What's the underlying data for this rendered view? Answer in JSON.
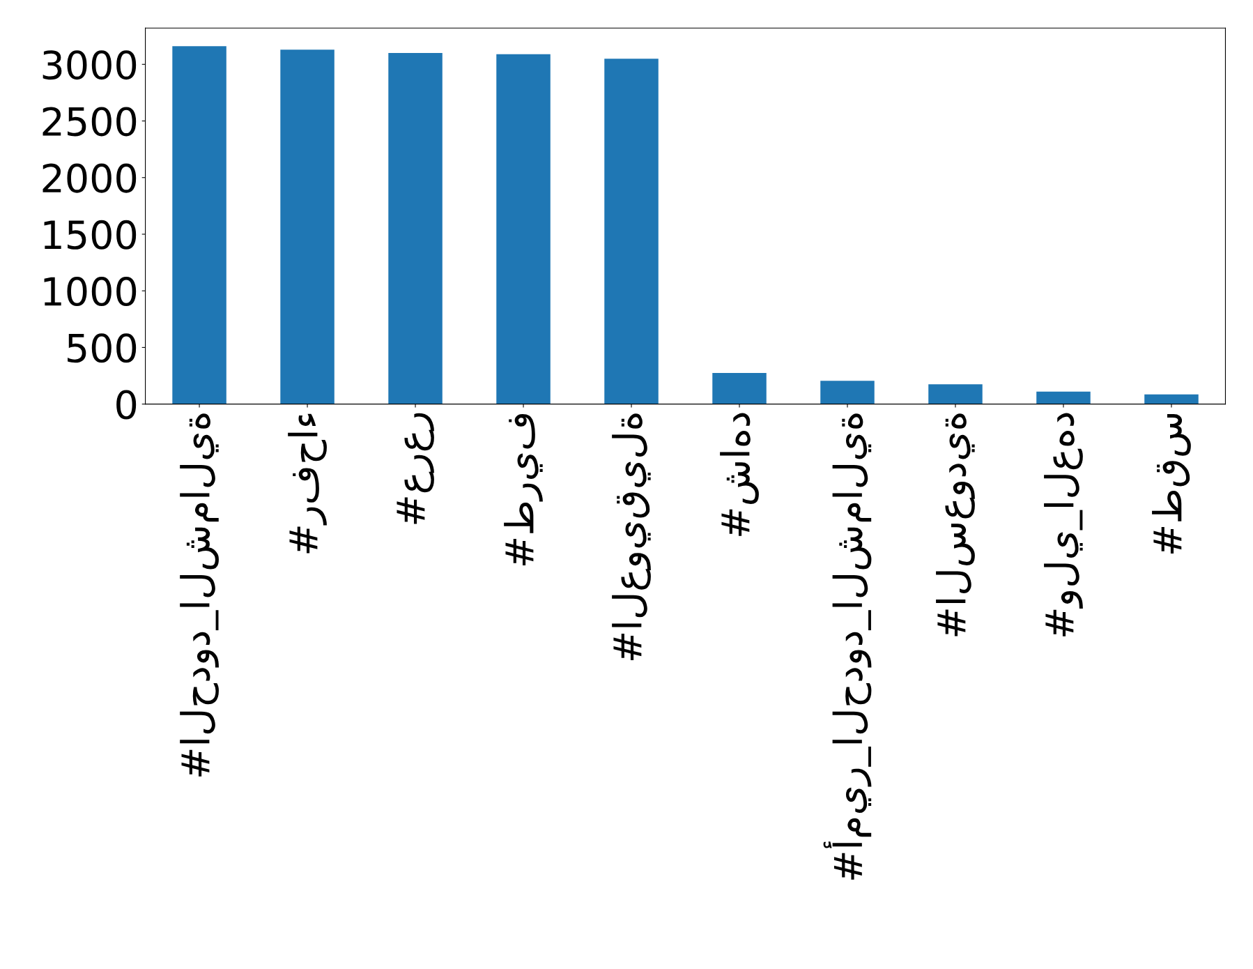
{
  "chart_data": {
    "type": "bar",
    "categories": [
      "#الحدود_الشمالية",
      "#رفحاء",
      "#عرعر",
      "#طريف",
      "#العويقيلة",
      "#شاهد",
      "#أمير_الحدود_الشمالية",
      "#السعودية",
      "#ولي_العهد",
      "#طقس"
    ],
    "values": [
      3160,
      3130,
      3100,
      3090,
      3050,
      275,
      205,
      175,
      110,
      85
    ],
    "color": "#1f77b4",
    "ylim": [
      0,
      3320
    ],
    "yticks": [
      0,
      500,
      1000,
      1500,
      2000,
      2500,
      3000
    ],
    "grid": false,
    "legend": false
  }
}
